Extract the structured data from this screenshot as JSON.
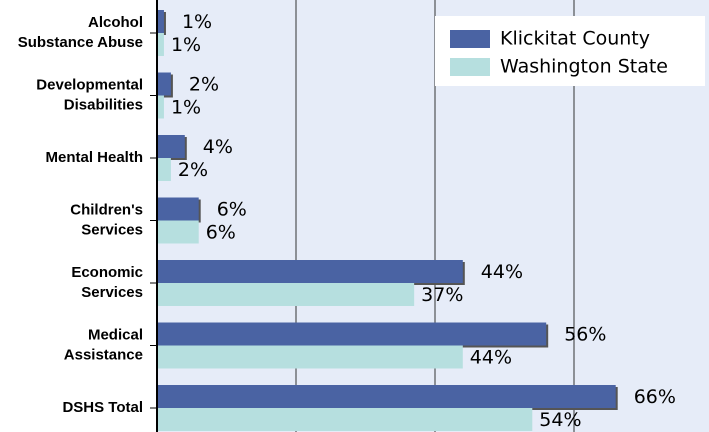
{
  "chart_data": {
    "type": "hbar",
    "categories": [
      [
        "Alcohol",
        "Substance Abuse"
      ],
      [
        "Developmental",
        "Disabilities"
      ],
      [
        "Mental Health"
      ],
      [
        "Children's",
        "Services"
      ],
      [
        "Economic",
        "Services"
      ],
      [
        "Medical",
        "Assistance"
      ],
      [
        "DSHS Total"
      ]
    ],
    "series": [
      {
        "name": "Klickitat County",
        "color": "#4a63a3",
        "values": [
          1,
          2,
          4,
          6,
          44,
          56,
          66
        ],
        "value_labels": [
          "1%",
          "2%",
          "4%",
          "6%",
          "44%",
          "56%",
          "66%"
        ]
      },
      {
        "name": "Washington State",
        "color": "#b6dfdf",
        "values": [
          1,
          1,
          2,
          6,
          37,
          44,
          54
        ],
        "value_labels": [
          "1%",
          "1%",
          "2%",
          "6%",
          "37%",
          "44%",
          "54%"
        ]
      }
    ],
    "xlim": [
      0,
      80
    ],
    "xticks": [
      20,
      40,
      60
    ],
    "grid": true,
    "legend": "top-right"
  }
}
